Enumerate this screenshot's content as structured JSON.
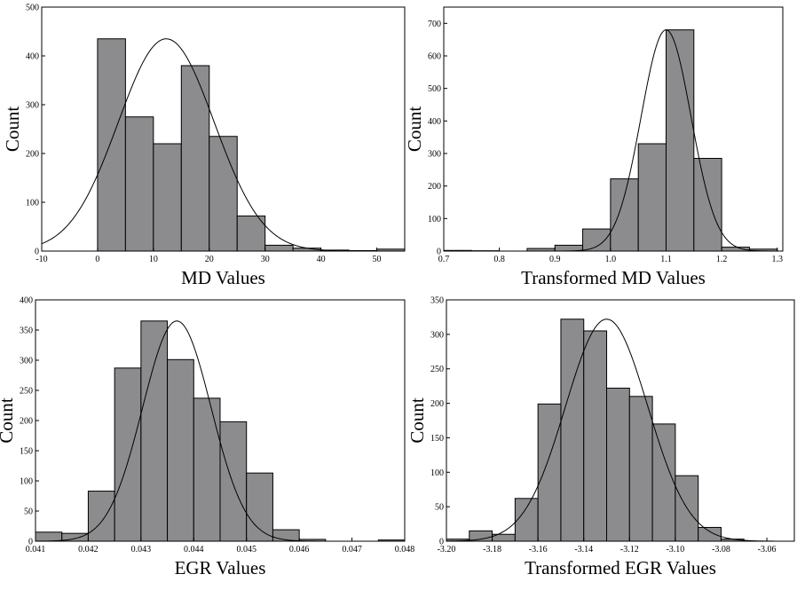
{
  "chart_data": [
    {
      "type": "histogram",
      "x_label": "MD Values",
      "y_label": "Count",
      "bins": [
        0,
        5,
        10,
        15,
        20,
        25,
        30,
        35,
        40,
        45,
        50,
        55
      ],
      "counts": [
        435,
        275,
        220,
        380,
        235,
        72,
        12,
        6,
        2,
        1,
        4
      ],
      "color": "#8c8c8e",
      "curve": {
        "mean": 12.3,
        "sd": 8.6,
        "peak": 435
      },
      "xlim": [
        -10,
        55
      ],
      "ylim": [
        0,
        500
      ],
      "xticks": [
        -10,
        0,
        10,
        20,
        30,
        40,
        50
      ],
      "yticks": [
        0,
        100,
        200,
        300,
        400,
        500
      ]
    },
    {
      "type": "histogram",
      "x_label": "Transformed MD Values",
      "y_label": "Count",
      "bins": [
        0.7,
        0.75,
        0.8,
        0.85,
        0.9,
        0.95,
        1.0,
        1.05,
        1.1,
        1.15,
        1.2,
        1.25,
        1.3
      ],
      "counts": [
        2,
        1,
        0,
        8,
        18,
        68,
        222,
        330,
        680,
        285,
        12,
        6
      ],
      "color": "#8c8c8e",
      "curve": {
        "mean": 1.1,
        "sd": 0.045,
        "peak": 680
      },
      "xlim": [
        0.7,
        1.31
      ],
      "ylim": [
        0,
        750
      ],
      "xticks": [
        0.7,
        0.8,
        0.9,
        {
          "value": 1,
          "label": "1.0"
        },
        1.1,
        1.2,
        1.3
      ],
      "yticks": [
        0,
        100,
        200,
        300,
        400,
        500,
        600,
        700
      ]
    },
    {
      "type": "histogram",
      "x_label": "EGR Values",
      "y_label": "Count",
      "bins": [
        0.041,
        0.0415,
        0.042,
        0.0425,
        0.043,
        0.0435,
        0.044,
        0.0445,
        0.045,
        0.0455,
        0.046,
        0.0465,
        0.047,
        0.0475,
        0.048
      ],
      "counts": [
        15,
        13,
        83,
        287,
        365,
        301,
        237,
        198,
        113,
        19,
        3,
        0,
        0,
        2
      ],
      "color": "#8c8c8e",
      "curve": {
        "mean": 0.04368,
        "sd": 0.00065,
        "peak": 365
      },
      "xlim": [
        0.041,
        0.048
      ],
      "ylim": [
        0,
        400
      ],
      "xticks": [
        0.041,
        0.042,
        0.043,
        0.044,
        0.045,
        0.046,
        0.047,
        0.048
      ],
      "yticks": [
        0,
        50,
        100,
        150,
        200,
        250,
        300,
        350,
        400
      ]
    },
    {
      "type": "histogram",
      "x_label": "Transformed EGR Values",
      "y_label": "Count",
      "bins": [
        -3.2,
        -3.19,
        -3.18,
        -3.17,
        -3.16,
        -3.15,
        -3.14,
        -3.13,
        -3.12,
        -3.11,
        -3.1,
        -3.09,
        -3.08,
        -3.07
      ],
      "counts": [
        3,
        15,
        10,
        62,
        199,
        322,
        305,
        222,
        210,
        170,
        95,
        20,
        3
      ],
      "color": "#8c8c8e",
      "curve": {
        "mean": -3.13,
        "sd": 0.018,
        "peak": 322
      },
      "xlim": [
        -3.2,
        -3.048
      ],
      "ylim": [
        0,
        350
      ],
      "xticks": [
        {
          "value": -3.2,
          "label": "-3.20"
        },
        -3.18,
        -3.16,
        -3.14,
        -3.12,
        {
          "value": -3.1,
          "label": "-3.10"
        },
        -3.08,
        -3.06
      ],
      "yticks": [
        0,
        50,
        100,
        150,
        200,
        250,
        300,
        350
      ]
    }
  ]
}
